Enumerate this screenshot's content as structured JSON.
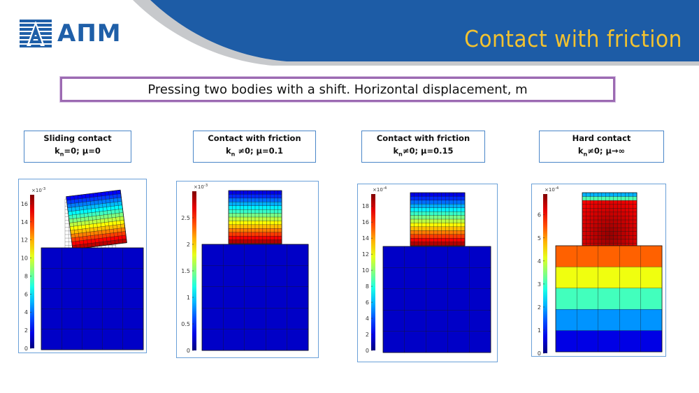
{
  "header": {
    "logo_text": "АПМ",
    "title": "Contact with friction",
    "colors": {
      "blue": "#1d5ca6",
      "title": "#f2c230",
      "swoosh": "#c7c9cc"
    }
  },
  "subtitle": "Pressing two bodies with a shift. Horizontal  displacement, m",
  "cases": [
    {
      "title": "Sliding contact",
      "params": "kn=0; μ=0",
      "params_parts": [
        "k",
        "n",
        "=0; μ=0"
      ]
    },
    {
      "title": "Contact with friction",
      "params": "kn ≠0; μ=0.1",
      "params_parts": [
        "k",
        "n",
        " ≠0; μ=0.1"
      ]
    },
    {
      "title": "Contact with friction",
      "params": "kn≠0; μ=0.15",
      "params_parts": [
        "k",
        "n",
        "≠0; μ=0.15"
      ]
    },
    {
      "title": "Hard contact",
      "params": "kn≠0; μ→∞",
      "params_parts": [
        "k",
        "n",
        "≠0; μ→∞"
      ]
    }
  ],
  "chart_data": [
    {
      "type": "heatmap",
      "colorbar_multiplier": "×10-3",
      "colorbar_ticks": [
        "0",
        "2",
        "4",
        "6",
        "8",
        "10",
        "12",
        "14",
        "16"
      ],
      "colorbar_range": [
        0,
        17
      ],
      "description": "sliding contact, rotated upper block"
    },
    {
      "type": "heatmap",
      "colorbar_multiplier": "×10-3",
      "colorbar_ticks": [
        "0",
        "0.5",
        "1",
        "1.5",
        "2",
        "2.5"
      ],
      "colorbar_range": [
        0,
        3
      ],
      "description": "contact with friction μ=0.1"
    },
    {
      "type": "heatmap",
      "colorbar_multiplier": "×10-4",
      "colorbar_ticks": [
        "0",
        "2",
        "4",
        "6",
        "8",
        "10",
        "12",
        "14",
        "16",
        "18"
      ],
      "colorbar_range": [
        0,
        19.5
      ],
      "description": "contact with friction μ=0.15"
    },
    {
      "type": "heatmap",
      "colorbar_multiplier": "×10-4",
      "colorbar_ticks": [
        "0",
        "1",
        "2",
        "3",
        "4",
        "5",
        "6"
      ],
      "colorbar_range": [
        0,
        6.9
      ],
      "description": "hard contact"
    }
  ]
}
